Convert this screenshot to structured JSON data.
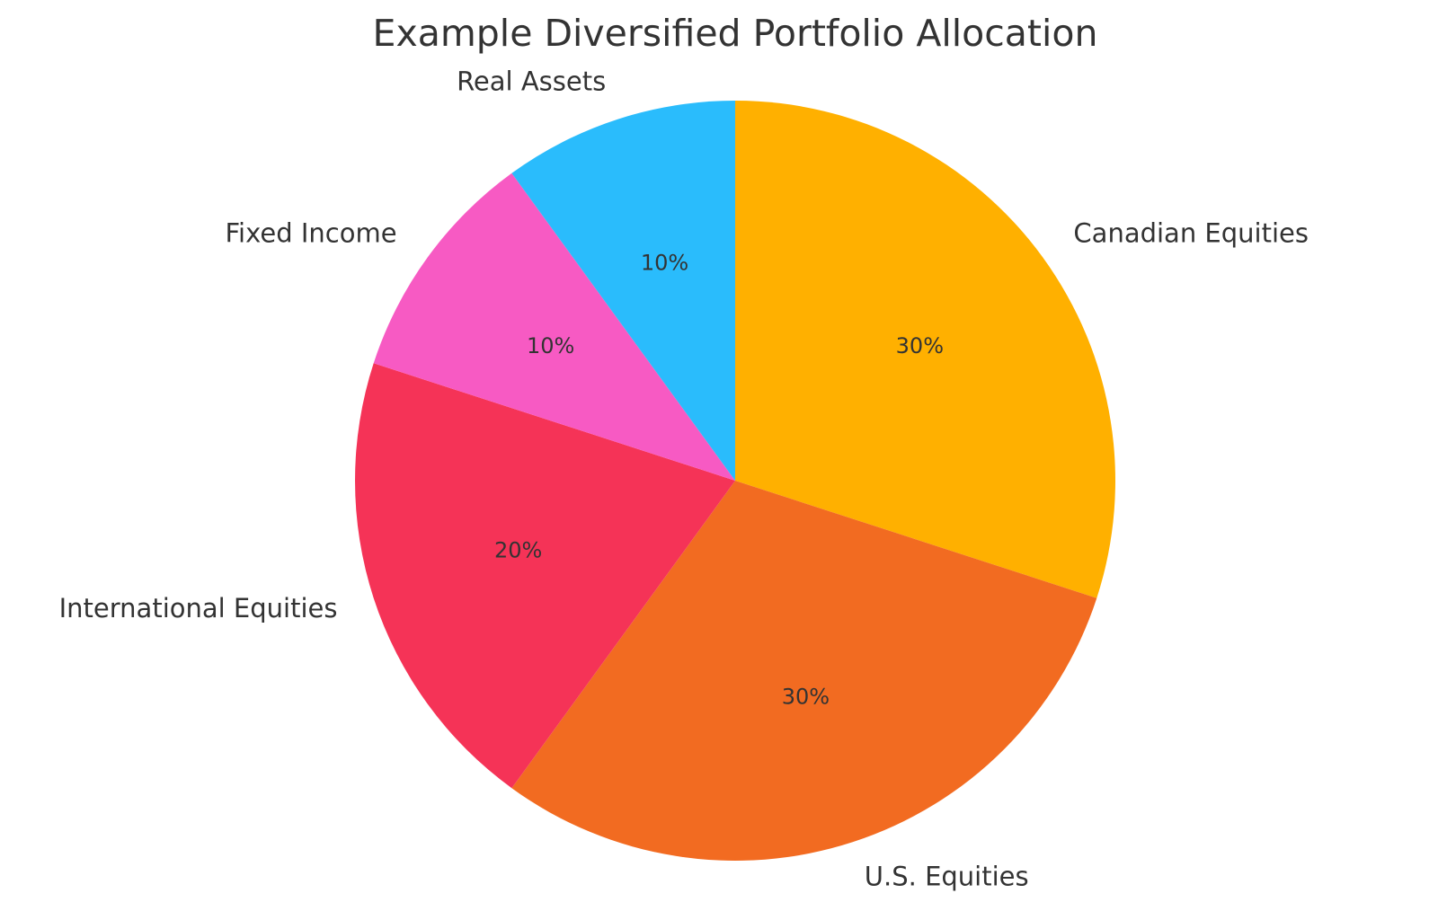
{
  "chart_data": {
    "type": "pie",
    "title": "Example Diversified Portfolio Allocation",
    "categories": [
      "Canadian Equities",
      "U.S. Equities",
      "International Equities",
      "Fixed Income",
      "Real Assets"
    ],
    "values": [
      30,
      30,
      20,
      10,
      10
    ],
    "value_labels": [
      "30%",
      "30%",
      "20%",
      "10%",
      "10%"
    ],
    "colors": [
      "#ffb000",
      "#f26b21",
      "#f53357",
      "#f75ac3",
      "#2abcfc"
    ]
  }
}
